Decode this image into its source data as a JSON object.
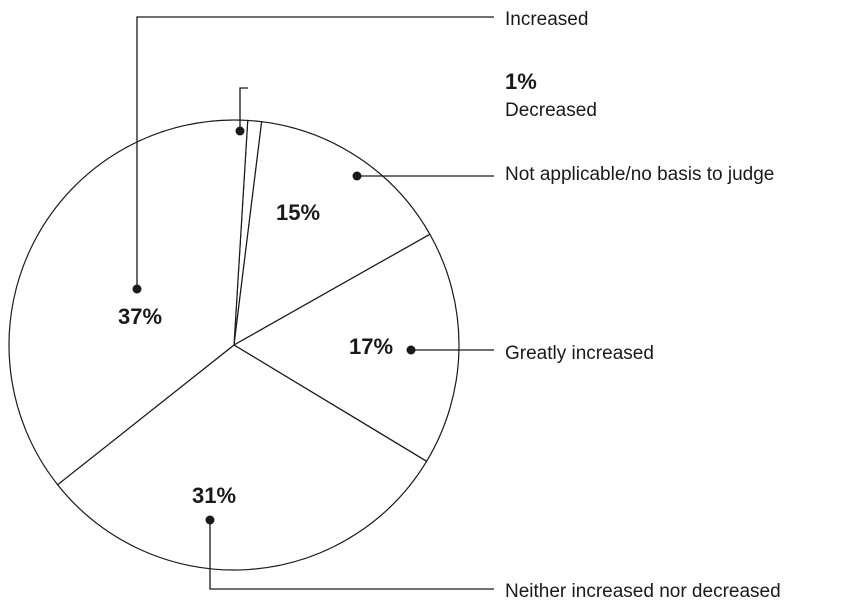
{
  "chart_data": {
    "type": "pie",
    "slices": [
      {
        "label": "Decreased",
        "value": 1,
        "value_label": "1%"
      },
      {
        "label": "Not applicable/no basis to judge",
        "value": 15,
        "value_label": "15%"
      },
      {
        "label": "Greatly increased",
        "value": 17,
        "value_label": "17%"
      },
      {
        "label": "Neither increased nor decreased",
        "value": 31,
        "value_label": "31%"
      },
      {
        "label": "Increased",
        "value": 37,
        "value_label": "37%"
      }
    ],
    "legend": "none"
  }
}
